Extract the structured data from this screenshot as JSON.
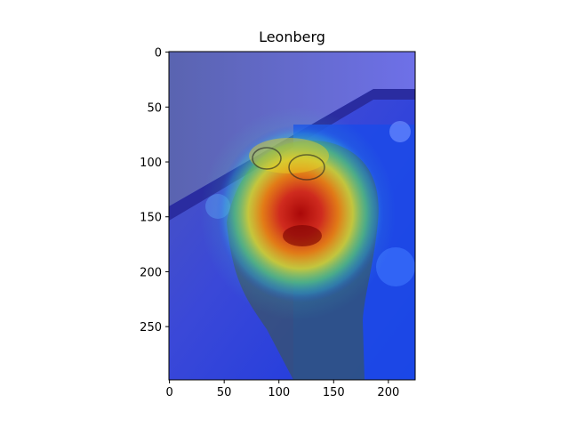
{
  "figure": {
    "title": "Leonberg",
    "image_description": "Grad-CAM style heatmap overlay on a photo of a dog lying on a patterned blue blanket; hottest region (red) centered on the dog's head/muzzle"
  },
  "chart_data": {
    "type": "heatmap",
    "title": "Leonberg",
    "xlabel": "",
    "ylabel": "",
    "xlim": [
      0,
      224
    ],
    "ylim": [
      298,
      0
    ],
    "x_ticks": [
      "0",
      "50",
      "100",
      "150",
      "200"
    ],
    "y_ticks": [
      "0",
      "50",
      "100",
      "150",
      "200",
      "250"
    ],
    "x_tick_values": [
      0,
      50,
      100,
      150,
      200
    ],
    "y_tick_values": [
      0,
      50,
      100,
      150,
      200,
      250
    ],
    "colormap": "jet",
    "hotspot_center": [
      125,
      155
    ],
    "grid": false
  }
}
